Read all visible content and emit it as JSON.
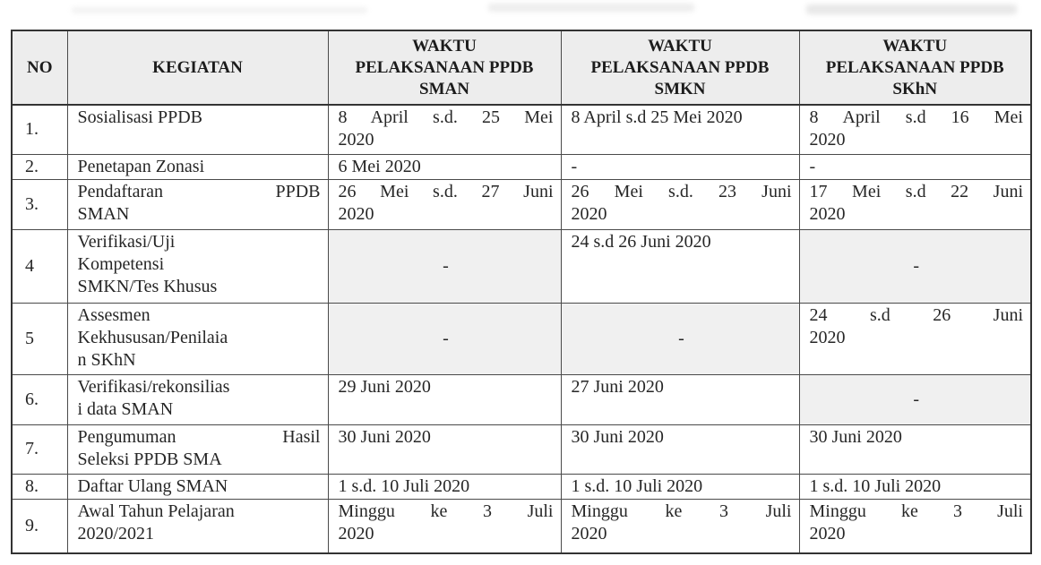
{
  "document": {
    "type": "schedule-table",
    "colors": {
      "header_bg": "#ededed",
      "na_cell_bg": "#f0f0f0",
      "border": "#333333",
      "text": "#262626"
    },
    "table": {
      "columns": [
        {
          "key": "no",
          "label": "NO"
        },
        {
          "key": "kegiatan",
          "label": "KEGIATAN"
        },
        {
          "key": "sman",
          "label": "WAKTU\nPELAKSANAAN PPDB\nSMAN"
        },
        {
          "key": "smkn",
          "label": "WAKTU\nPELAKSANAAN PPDB\nSMKN"
        },
        {
          "key": "skhn",
          "label": "WAKTU\nPELAKSANAAN PPDB\nSKhN"
        }
      ],
      "rows": [
        {
          "no": "1.",
          "cells": [
            {
              "t": "Sosialisasi PPDB",
              "v": "p"
            },
            {
              "t": "8 April s.d. 25 Mei\n2020",
              "v": "j"
            },
            {
              "t": "8 April s.d 25 Mei 2020",
              "v": "p"
            },
            {
              "t": "8 April s.d 16 Mei\n2020",
              "v": "j"
            }
          ]
        },
        {
          "no": "2.",
          "cells": [
            {
              "t": "Penetapan Zonasi",
              "v": "p"
            },
            {
              "t": "6 Mei 2020",
              "v": "p"
            },
            {
              "t": "-",
              "v": "p"
            },
            {
              "t": "-",
              "v": "p"
            }
          ]
        },
        {
          "no": "3.",
          "cells": [
            {
              "t": "Pendaftaran PPDB\nSMAN",
              "v": "j"
            },
            {
              "t": "26 Mei s.d. 27 Juni\n2020",
              "v": "j"
            },
            {
              "t": "26 Mei s.d. 23 Juni\n2020",
              "v": "j"
            },
            {
              "t": "17 Mei s.d 22 Juni\n2020",
              "v": "j"
            }
          ]
        },
        {
          "no": "4",
          "cells": [
            {
              "t": "Verifikasi/Uji\nKompetensi\nSMKN/Tes Khusus",
              "v": "j"
            },
            {
              "t": "-",
              "v": "na"
            },
            {
              "t": "24 s.d 26 Juni 2020",
              "v": "p"
            },
            {
              "t": "-",
              "v": "na"
            }
          ]
        },
        {
          "no": "5",
          "cells": [
            {
              "t": "Assesmen\nKekhususan/Penilaia\nn SKhN",
              "v": "j"
            },
            {
              "t": "-",
              "v": "na"
            },
            {
              "t": "-",
              "v": "na"
            },
            {
              "t": "24 s.d 26 Juni\n2020",
              "v": "j"
            }
          ]
        },
        {
          "no": "6.",
          "cells": [
            {
              "t": "Verifikasi/rekonsilias\ni data SMAN",
              "v": "j"
            },
            {
              "t": "29 Juni 2020",
              "v": "p"
            },
            {
              "t": "27 Juni 2020",
              "v": "p"
            },
            {
              "t": "-",
              "v": "na"
            }
          ]
        },
        {
          "no": "7.",
          "cells": [
            {
              "t": "Pengumuman Hasil\nSeleksi PPDB SMA",
              "v": "j"
            },
            {
              "t": "30 Juni 2020",
              "v": "p"
            },
            {
              "t": "30 Juni 2020",
              "v": "p"
            },
            {
              "t": "30 Juni 2020",
              "v": "p"
            }
          ]
        },
        {
          "no": "8.",
          "cells": [
            {
              "t": "Daftar Ulang SMAN",
              "v": "p"
            },
            {
              "t": "1 s.d. 10 Juli 2020",
              "v": "p"
            },
            {
              "t": "1 s.d. 10 Juli 2020",
              "v": "p"
            },
            {
              "t": "1 s.d. 10 Juli 2020",
              "v": "p"
            }
          ]
        },
        {
          "no": "9.",
          "cells": [
            {
              "t": "Awal Tahun Pelajaran\n2020/2021",
              "v": "p"
            },
            {
              "t": "Minggu ke 3 Juli\n2020",
              "v": "j"
            },
            {
              "t": "Minggu ke 3 Juli\n2020",
              "v": "j"
            },
            {
              "t": "Minggu ke 3 Juli\n2020",
              "v": "j"
            }
          ]
        }
      ]
    }
  }
}
